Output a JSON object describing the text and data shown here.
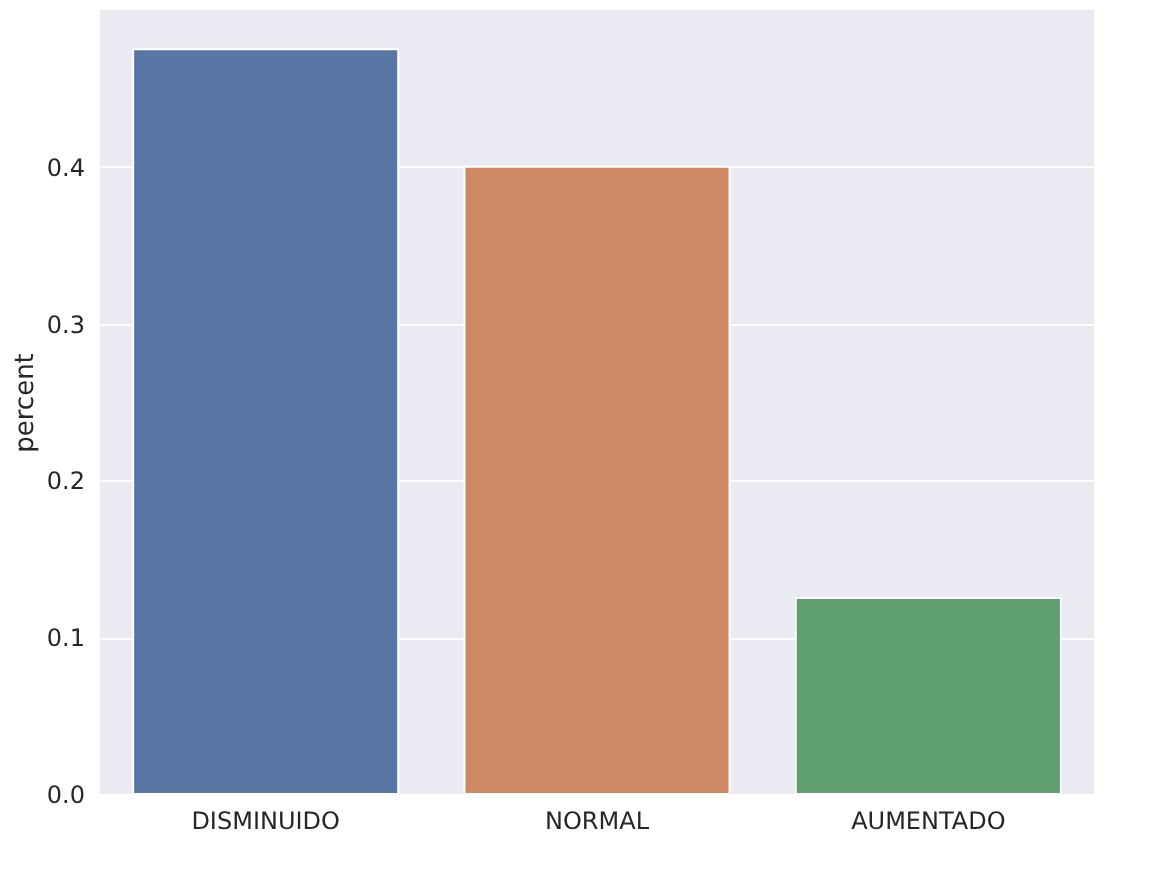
{
  "chart_data": {
    "type": "bar",
    "ylabel": "percent",
    "categories": [
      "DISMINUIDO",
      "NORMAL",
      "AUMENTADO"
    ],
    "values": [
      0.475,
      0.4,
      0.125
    ],
    "colors": [
      "#5975a4",
      "#cc8963",
      "#5f9e6e"
    ],
    "ylim": [
      0,
      0.5
    ],
    "yticks": [
      {
        "value": 0,
        "label": "0.0"
      },
      0.1,
      0.2,
      0.3,
      0.4
    ],
    "grid": "y"
  }
}
